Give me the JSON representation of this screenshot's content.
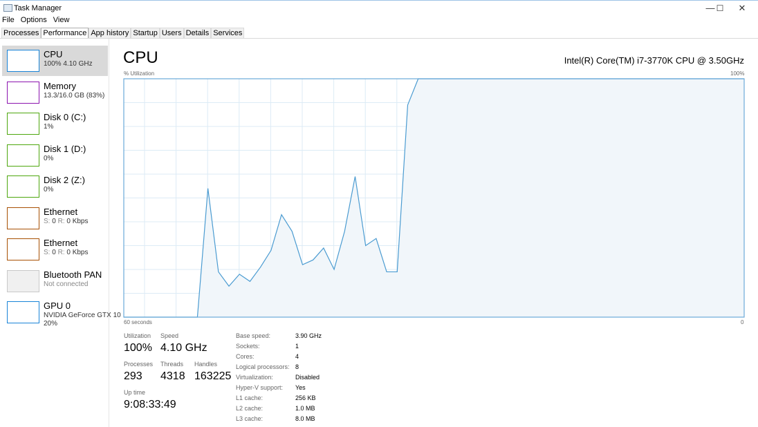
{
  "window": {
    "title": "Task Manager",
    "minimize": "—",
    "maximize": "☐",
    "close": "✕"
  },
  "menu": [
    "File",
    "Options",
    "View"
  ],
  "tabs": [
    "Processes",
    "Performance",
    "App history",
    "Startup",
    "Users",
    "Details",
    "Services"
  ],
  "active_tab": "Performance",
  "sidebar": [
    {
      "name": "CPU",
      "sub": "100%  4.10 GHz",
      "color": "#1883d7",
      "selected": true
    },
    {
      "name": "Memory",
      "sub": "13.3/16.0 GB (83%)",
      "color": "#8b12ae"
    },
    {
      "name": "Disk 0 (C:)",
      "sub": "1%",
      "color": "#4da60c"
    },
    {
      "name": "Disk 1 (D:)",
      "sub": "0%",
      "color": "#4da60c"
    },
    {
      "name": "Disk 2 (Z:)",
      "sub": "0%",
      "color": "#4da60c"
    },
    {
      "name": "Ethernet",
      "s_label": "S:",
      "s_val": "0",
      "r_label": "R:",
      "r_val": "0 Kbps",
      "color": "#a74f01"
    },
    {
      "name": "Ethernet",
      "s_label": "S:",
      "s_val": "0",
      "r_label": "R:",
      "r_val": "0 Kbps",
      "color": "#a74f01"
    },
    {
      "name": "Bluetooth PAN",
      "sub": "Not connected",
      "color": "#c8c8c8"
    },
    {
      "name": "GPU 0",
      "sub": "NVIDIA GeForce GTX 10",
      "sub2": "20%",
      "color": "#1883d7"
    }
  ],
  "main": {
    "title": "CPU",
    "cpu_model": "Intel(R) Core(TM) i7-3770K CPU @ 3.50GHz",
    "stats": {
      "utilization_label": "Utilization",
      "utilization": "100%",
      "speed_label": "Speed",
      "speed": "4.10 GHz",
      "processes_label": "Processes",
      "processes": "293",
      "threads_label": "Threads",
      "threads": "4318",
      "handles_label": "Handles",
      "handles": "163225",
      "uptime_label": "Up time",
      "uptime": "9:08:33:49"
    },
    "specs": [
      {
        "k": "Base speed:",
        "v": "3.90 GHz"
      },
      {
        "k": "Sockets:",
        "v": "1"
      },
      {
        "k": "Cores:",
        "v": "4"
      },
      {
        "k": "Logical processors:",
        "v": "8"
      },
      {
        "k": "Virtualization:",
        "v": "Disabled"
      },
      {
        "k": "Hyper-V support:",
        "v": "Yes"
      },
      {
        "k": "L1 cache:",
        "v": "256 KB"
      },
      {
        "k": "L2 cache:",
        "v": "1.0 MB"
      },
      {
        "k": "L3 cache:",
        "v": "8.0 MB"
      }
    ]
  },
  "chart_data": {
    "type": "area",
    "ylabel": "% Utilization",
    "ymax_label": "100%",
    "xlabel_left": "60 seconds",
    "xlabel_right": "0",
    "ylim": [
      0,
      100
    ],
    "xlim_seconds": [
      60,
      0
    ],
    "grid": true,
    "line_color": "#4a9bd1",
    "fill_color": "#f1f6fa",
    "values": [
      0,
      0,
      0,
      0,
      0,
      0,
      0,
      0,
      54,
      19,
      13,
      18,
      15,
      21,
      28,
      43,
      36,
      22,
      24,
      29,
      20,
      36,
      59,
      30,
      33,
      19,
      19,
      89,
      100,
      100,
      100,
      100,
      100,
      100,
      100,
      100,
      100,
      100,
      100,
      100,
      100,
      100,
      100,
      100,
      100,
      100,
      100,
      100,
      100,
      100,
      100,
      100,
      100,
      100,
      100,
      100,
      100,
      100,
      100,
      100
    ]
  }
}
